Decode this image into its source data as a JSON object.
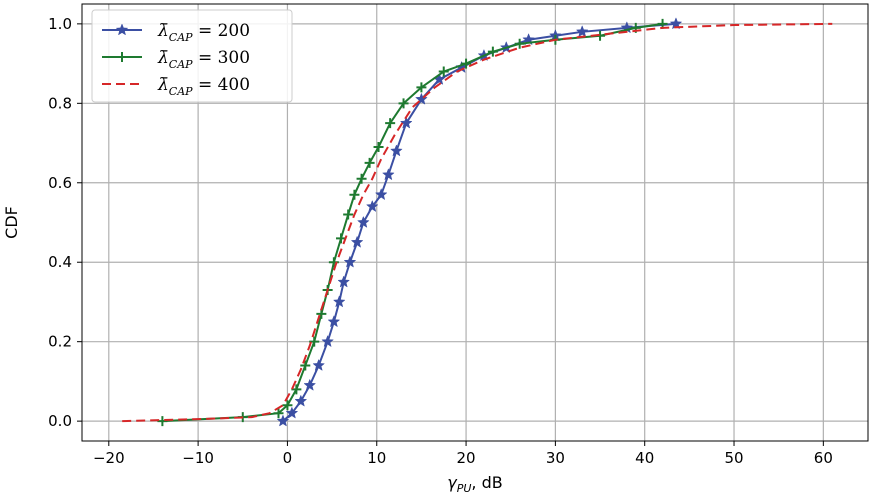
{
  "chart_data": {
    "type": "line",
    "title": "",
    "xlabel": "γPU, dB",
    "xlabel_parts": {
      "sym": "γ",
      "sub": "PU",
      "rest": ", dB"
    },
    "ylabel": "CDF",
    "xlim": [
      -23,
      65
    ],
    "ylim": [
      -0.05,
      1.05
    ],
    "xticks": [
      -20,
      -10,
      0,
      10,
      20,
      30,
      40,
      50,
      60
    ],
    "yticks": [
      0.0,
      0.2,
      0.4,
      0.6,
      0.8,
      1.0
    ],
    "xtick_labels": [
      "−20",
      "−10",
      "0",
      "10",
      "20",
      "30",
      "40",
      "50",
      "60"
    ],
    "ytick_labels": [
      "0.0",
      "0.2",
      "0.4",
      "0.6",
      "0.8",
      "1.0"
    ],
    "grid": true,
    "legend_position": "top-left",
    "series": [
      {
        "name": "λ̄CAP = 200",
        "legend": {
          "sym": "λ̄",
          "sub": "CAP",
          "rest": " = 200"
        },
        "color": "#3b4fa3",
        "line_style": "solid",
        "marker": "star",
        "x": [
          -0.5,
          0.5,
          1.5,
          2.5,
          3.5,
          4.5,
          5.2,
          5.8,
          6.3,
          7.0,
          7.8,
          8.5,
          9.5,
          10.5,
          11.3,
          12.2,
          13.3,
          15.0,
          17.0,
          19.5,
          22.0,
          24.5,
          27.0,
          30.0,
          33.0,
          38.0,
          43.5
        ],
        "y": [
          0.0,
          0.02,
          0.05,
          0.09,
          0.14,
          0.2,
          0.25,
          0.3,
          0.35,
          0.4,
          0.45,
          0.5,
          0.54,
          0.57,
          0.62,
          0.68,
          0.75,
          0.81,
          0.86,
          0.89,
          0.92,
          0.94,
          0.96,
          0.97,
          0.98,
          0.99,
          1.0
        ]
      },
      {
        "name": "λ̄CAP = 300",
        "legend": {
          "sym": "λ̄",
          "sub": "CAP",
          "rest": " = 300"
        },
        "color": "#1e7a30",
        "line_style": "solid",
        "marker": "plus",
        "x": [
          -14.0,
          -5.0,
          -1.0,
          0.0,
          1.0,
          2.0,
          3.0,
          3.8,
          4.5,
          5.2,
          6.0,
          6.8,
          7.5,
          8.3,
          9.2,
          10.2,
          11.5,
          13.0,
          15.0,
          17.5,
          20.0,
          23.0,
          26.0,
          30.0,
          35.0,
          39.0,
          42.0
        ],
        "y": [
          0.0,
          0.01,
          0.02,
          0.04,
          0.08,
          0.14,
          0.2,
          0.27,
          0.33,
          0.4,
          0.46,
          0.52,
          0.57,
          0.61,
          0.65,
          0.69,
          0.75,
          0.8,
          0.84,
          0.88,
          0.9,
          0.93,
          0.95,
          0.96,
          0.97,
          0.99,
          1.0
        ]
      },
      {
        "name": "λ̄CAP = 400",
        "legend": {
          "sym": "λ̄",
          "sub": "CAP",
          "rest": " = 400"
        },
        "color": "#d62728",
        "line_style": "dashed",
        "marker": "none",
        "x": [
          -18.5,
          -10.0,
          -4.0,
          -2.0,
          -0.5,
          0.5,
          1.5,
          2.5,
          3.5,
          4.5,
          5.5,
          6.5,
          7.5,
          8.5,
          9.5,
          10.5,
          12.0,
          14.0,
          16.5,
          19.0,
          22.0,
          26.0,
          30.0,
          36.0,
          42.0,
          50.0,
          61.0
        ],
        "y": [
          0.0,
          0.005,
          0.01,
          0.02,
          0.04,
          0.08,
          0.13,
          0.19,
          0.26,
          0.33,
          0.4,
          0.46,
          0.52,
          0.57,
          0.61,
          0.66,
          0.72,
          0.79,
          0.84,
          0.88,
          0.91,
          0.94,
          0.96,
          0.975,
          0.99,
          0.997,
          1.0
        ]
      }
    ]
  }
}
